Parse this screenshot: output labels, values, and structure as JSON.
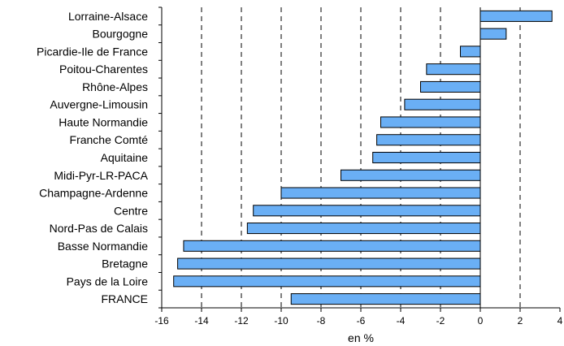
{
  "chart_data": {
    "type": "bar",
    "orientation": "horizontal",
    "categories": [
      "Lorraine-Alsace",
      "Bourgogne",
      "Picardie-Ile de France",
      "Poitou-Charentes",
      "Rhône-Alpes",
      "Auvergne-Limousin",
      "Haute Normandie",
      "Franche Comté",
      "Aquitaine",
      "Midi-Pyr-LR-PACA",
      "Champagne-Ardenne",
      "Centre",
      "Nord-Pas de Calais",
      "Basse Normandie",
      "Bretagne",
      "Pays de la Loire",
      "FRANCE"
    ],
    "values": [
      3.6,
      1.3,
      -1.0,
      -2.7,
      -3.0,
      -3.8,
      -5.0,
      -5.2,
      -5.4,
      -7.0,
      -10.0,
      -11.4,
      -11.7,
      -14.9,
      -15.2,
      -15.4,
      -9.5
    ],
    "xlabel": "en %",
    "ylabel": "",
    "xlim": [
      -16,
      4
    ],
    "xticks": [
      -16,
      -14,
      -12,
      -10,
      -8,
      -6,
      -4,
      -2,
      0,
      2,
      4
    ],
    "xtick_labels": [
      "-16",
      "-14",
      "-12",
      "-10",
      "-8",
      "-6",
      "-4",
      "-2",
      "0",
      "2",
      "4"
    ],
    "grid": "vertical dashed at even ticks",
    "bar_color": "#6aaff5"
  }
}
